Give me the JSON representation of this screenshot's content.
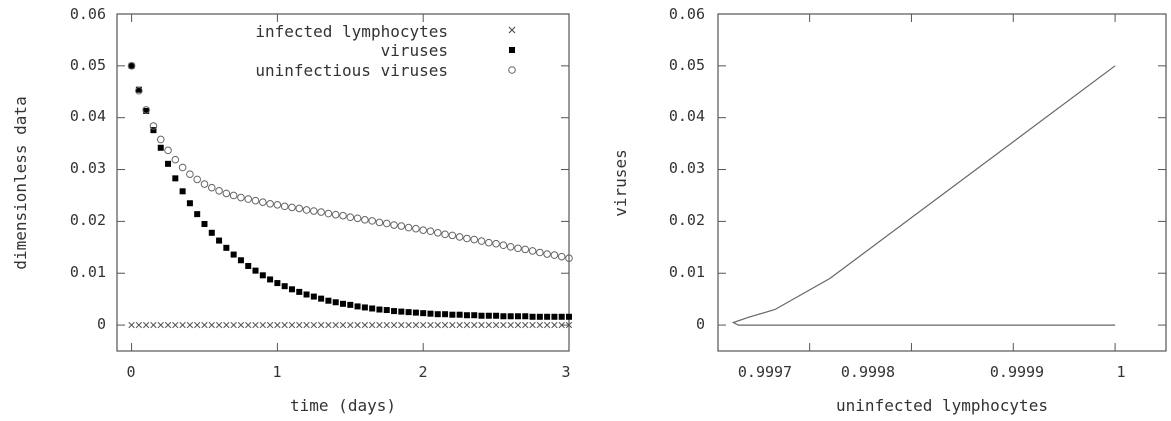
{
  "chart_data": [
    {
      "type": "scatter",
      "xlabel": "time (days)",
      "ylabel": "dimensionless data",
      "xlim": [
        -0.1,
        3
      ],
      "ylim": [
        -0.005,
        0.06
      ],
      "xticks": [
        "0",
        "1",
        "2",
        "3"
      ],
      "yticks": [
        "0",
        "0.01",
        "0.02",
        "0.03",
        "0.04",
        "0.05",
        "0.06"
      ],
      "grid": false,
      "legend_position": "top-right",
      "series": [
        {
          "name": "infected lymphocytes",
          "marker": "cross",
          "color": "#555555",
          "x": [
            0,
            0.05,
            0.1,
            0.15,
            0.2,
            0.25,
            0.3,
            0.35,
            0.4,
            0.45,
            0.5,
            0.55,
            0.6,
            0.65,
            0.7,
            0.75,
            0.8,
            0.85,
            0.9,
            0.95,
            1.0,
            1.05,
            1.1,
            1.15,
            1.2,
            1.25,
            1.3,
            1.35,
            1.4,
            1.45,
            1.5,
            1.55,
            1.6,
            1.65,
            1.7,
            1.75,
            1.8,
            1.85,
            1.9,
            1.95,
            2.0,
            2.05,
            2.1,
            2.15,
            2.2,
            2.25,
            2.3,
            2.35,
            2.4,
            2.45,
            2.5,
            2.55,
            2.6,
            2.65,
            2.7,
            2.75,
            2.8,
            2.85,
            2.9,
            2.95,
            3.0
          ],
          "y": [
            0,
            0,
            0,
            0,
            0,
            0,
            0,
            0,
            0,
            0,
            0,
            0,
            0,
            0,
            0,
            0,
            0,
            0,
            0,
            0,
            0,
            0,
            0,
            0,
            0,
            0,
            0,
            0,
            0,
            0,
            0,
            0,
            0,
            0,
            0,
            0,
            0,
            0,
            0,
            0,
            0,
            0,
            0,
            0,
            0,
            0,
            0,
            0,
            0,
            0,
            0,
            0,
            0,
            0,
            0,
            0,
            0,
            0,
            0,
            0,
            0
          ]
        },
        {
          "name": "viruses",
          "marker": "filled-square",
          "color": "#000000",
          "x": [
            0,
            0.05,
            0.1,
            0.15,
            0.2,
            0.25,
            0.3,
            0.35,
            0.4,
            0.45,
            0.5,
            0.55,
            0.6,
            0.65,
            0.7,
            0.75,
            0.8,
            0.85,
            0.9,
            0.95,
            1.0,
            1.05,
            1.1,
            1.15,
            1.2,
            1.25,
            1.3,
            1.35,
            1.4,
            1.45,
            1.5,
            1.55,
            1.6,
            1.65,
            1.7,
            1.75,
            1.8,
            1.85,
            1.9,
            1.95,
            2.0,
            2.05,
            2.1,
            2.15,
            2.2,
            2.25,
            2.3,
            2.35,
            2.4,
            2.45,
            2.5,
            2.55,
            2.6,
            2.65,
            2.7,
            2.75,
            2.8,
            2.85,
            2.9,
            2.95,
            3.0
          ],
          "y": [
            0.05,
            0.0454,
            0.0413,
            0.0376,
            0.0342,
            0.0311,
            0.0283,
            0.0258,
            0.0235,
            0.0214,
            0.0195,
            0.0178,
            0.0163,
            0.0149,
            0.0136,
            0.0125,
            0.0114,
            0.0105,
            0.0096,
            0.0088,
            0.0081,
            0.0075,
            0.0069,
            0.0064,
            0.0059,
            0.0055,
            0.0051,
            0.0047,
            0.0044,
            0.0041,
            0.0039,
            0.0036,
            0.0034,
            0.0032,
            0.003,
            0.0029,
            0.0027,
            0.0026,
            0.0025,
            0.0024,
            0.0023,
            0.0022,
            0.0021,
            0.0021,
            0.002,
            0.002,
            0.0019,
            0.0019,
            0.0018,
            0.0018,
            0.0018,
            0.0017,
            0.0017,
            0.0017,
            0.0017,
            0.0016,
            0.0016,
            0.0016,
            0.0016,
            0.0016,
            0.0016
          ]
        },
        {
          "name": "uninfectious viruses",
          "marker": "open-circle",
          "color": "#666666",
          "x": [
            0,
            0.05,
            0.1,
            0.15,
            0.2,
            0.25,
            0.3,
            0.35,
            0.4,
            0.45,
            0.5,
            0.55,
            0.6,
            0.65,
            0.7,
            0.75,
            0.8,
            0.85,
            0.9,
            0.95,
            1.0,
            1.05,
            1.1,
            1.15,
            1.2,
            1.25,
            1.3,
            1.35,
            1.4,
            1.45,
            1.5,
            1.55,
            1.6,
            1.65,
            1.7,
            1.75,
            1.8,
            1.85,
            1.9,
            1.95,
            2.0,
            2.05,
            2.1,
            2.15,
            2.2,
            2.25,
            2.3,
            2.35,
            2.4,
            2.45,
            2.5,
            2.55,
            2.6,
            2.65,
            2.7,
            2.75,
            2.8,
            2.85,
            2.9,
            2.95,
            3.0
          ],
          "y": [
            0.05,
            0.0452,
            0.0415,
            0.0384,
            0.0358,
            0.0337,
            0.0319,
            0.0304,
            0.0291,
            0.0281,
            0.0272,
            0.0265,
            0.0259,
            0.0254,
            0.025,
            0.0246,
            0.0243,
            0.024,
            0.0237,
            0.0234,
            0.0232,
            0.0229,
            0.0227,
            0.0225,
            0.0222,
            0.022,
            0.0218,
            0.0215,
            0.0213,
            0.0211,
            0.0208,
            0.0206,
            0.0203,
            0.0201,
            0.0198,
            0.0196,
            0.0193,
            0.0191,
            0.0188,
            0.0186,
            0.0183,
            0.0181,
            0.0178,
            0.0175,
            0.0173,
            0.017,
            0.0167,
            0.0165,
            0.0162,
            0.0159,
            0.0157,
            0.0154,
            0.0151,
            0.0148,
            0.0146,
            0.0143,
            0.014,
            0.0137,
            0.0135,
            0.0132,
            0.0129
          ]
        }
      ]
    },
    {
      "type": "line",
      "xlabel": "uninfected lymphocytes",
      "ylabel": "viruses",
      "xlim": [
        0.99961,
        1.00005
      ],
      "ylim": [
        -0.005,
        0.06
      ],
      "xticks": [
        "0.9997",
        "0.9998",
        "0.9999",
        "1"
      ],
      "yticks": [
        "0",
        "0.01",
        "0.02",
        "0.03",
        "0.04",
        "0.05",
        "0.06"
      ],
      "grid": false,
      "series": [
        {
          "color": "#666666",
          "x": [
            1.0,
            0.99972,
            0.999666,
            0.99964,
            0.999625,
            0.99963,
            1.0
          ],
          "y": [
            0.05,
            0.009,
            0.003,
            0.0015,
            0.0005,
            0.0,
            0.0
          ]
        }
      ]
    }
  ]
}
